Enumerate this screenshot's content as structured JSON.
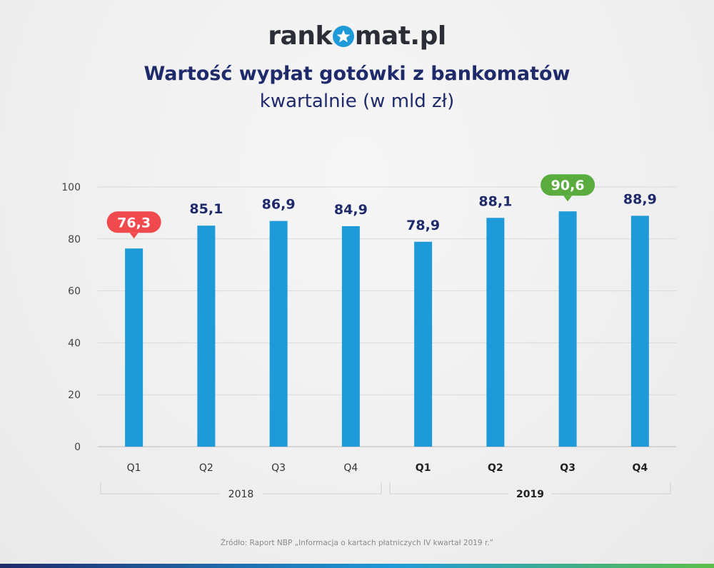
{
  "logo": {
    "pre": "rank",
    "post": "mat.pl",
    "icon": "star-icon"
  },
  "title": "Wartość wypłat gotówki z bankomatów",
  "subtitle": "kwartalnie (w mld zł)",
  "source": "Źródło: Raport NBP „Informacja o kartach płatniczych IV kwartał 2019 r.”",
  "colors": {
    "bar": "#1f9ad8",
    "min_badge": "#f04a4f",
    "max_badge": "#5aac3f",
    "value_text": "#1f2a6b",
    "grid": "#d8d8d8"
  },
  "chart_data": {
    "type": "bar",
    "title": "Wartość wypłat gotówki z bankomatów",
    "subtitle": "kwartalnie (w mld zł)",
    "categories": [
      "Q1",
      "Q2",
      "Q3",
      "Q4",
      "Q1",
      "Q2",
      "Q3",
      "Q4"
    ],
    "values": [
      76.3,
      85.1,
      86.9,
      84.9,
      78.9,
      88.1,
      90.6,
      88.9
    ],
    "value_labels": [
      "76,3",
      "85,1",
      "86,9",
      "84,9",
      "78,9",
      "88,1",
      "90,6",
      "88,9"
    ],
    "groups": [
      {
        "label": "2018",
        "bold": false
      },
      {
        "label": "2019",
        "bold": true
      }
    ],
    "group_size": 4,
    "ylim": [
      0,
      100
    ],
    "yticks": [
      "0",
      "20",
      "40",
      "60",
      "80",
      "100"
    ],
    "grid": true,
    "highlight": {
      "min_index": 0,
      "max_index": 6
    }
  }
}
